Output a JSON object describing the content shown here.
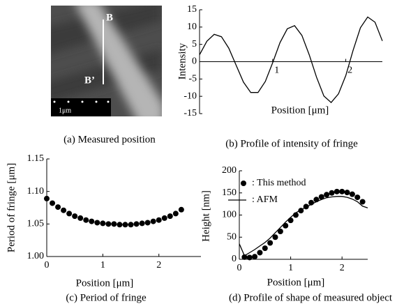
{
  "chart_data": [
    {
      "type": "image",
      "caption": "(a) Measured position",
      "point_labels": [
        "B",
        "B’"
      ],
      "scale_label": "1μm"
    },
    {
      "type": "line",
      "caption": "(b) Profile of intensity of fringe",
      "xlabel": "Position [μm]",
      "ylabel": "Intensity",
      "color": "#000000",
      "x": [
        0,
        0.1,
        0.2,
        0.3,
        0.4,
        0.5,
        0.6,
        0.7,
        0.8,
        0.9,
        1.0,
        1.1,
        1.2,
        1.3,
        1.4,
        1.5,
        1.6,
        1.7,
        1.8,
        1.9,
        2.0,
        2.1,
        2.2,
        2.3,
        2.4,
        2.5
      ],
      "values": [
        2.0,
        5.9,
        7.9,
        7.2,
        3.9,
        -1.0,
        -5.9,
        -8.9,
        -8.9,
        -5.7,
        -0.3,
        5.5,
        9.5,
        10.4,
        7.6,
        2.0,
        -4.5,
        -9.9,
        -11.8,
        -9.3,
        -4.0,
        3.3,
        9.8,
        12.9,
        11.4,
        6.0
      ],
      "xlim": [
        0,
        2.5
      ],
      "ylim": [
        -15,
        15
      ],
      "xticks": [
        1,
        2
      ],
      "yticks": [
        -15,
        -10,
        -5,
        0,
        5,
        10,
        15
      ]
    },
    {
      "type": "scatter",
      "caption": "(c) Period of fringe",
      "xlabel": "Position [μm]",
      "ylabel": "Period of fringe [μm]",
      "color": "#000000",
      "x": [
        0,
        0.1,
        0.2,
        0.3,
        0.4,
        0.5,
        0.6,
        0.7,
        0.8,
        0.9,
        1.0,
        1.1,
        1.2,
        1.3,
        1.4,
        1.5,
        1.6,
        1.7,
        1.8,
        1.9,
        2.0,
        2.1,
        2.2,
        2.3,
        2.4
      ],
      "values": [
        1.089,
        1.082,
        1.076,
        1.071,
        1.066,
        1.062,
        1.059,
        1.056,
        1.054,
        1.052,
        1.051,
        1.05,
        1.05,
        1.049,
        1.049,
        1.049,
        1.05,
        1.051,
        1.052,
        1.054,
        1.056,
        1.059,
        1.062,
        1.066,
        1.072
      ],
      "xlim": [
        0,
        2.75
      ],
      "ylim": [
        1,
        1.15
      ],
      "xticks": [
        0,
        1,
        2
      ],
      "yticks": [
        {
          "value": 1,
          "label": "1.00"
        },
        1.05,
        {
          "value": 1.1,
          "label": "1.10"
        },
        1.15
      ]
    },
    {
      "type": "mixed",
      "caption": "(d) Profile of shape of measured object",
      "xlabel": "Position [μm]",
      "ylabel": "Height [nm]",
      "xlim": [
        0,
        2.5
      ],
      "ylim": [
        0,
        200
      ],
      "xticks": [
        0,
        1,
        2
      ],
      "yticks": [
        0,
        50,
        100,
        150,
        200
      ],
      "series": [
        {
          "name": ": This method",
          "type": "scatter",
          "color": "#000000",
          "x": [
            0.1,
            0.2,
            0.3,
            0.4,
            0.5,
            0.6,
            0.7,
            0.8,
            0.9,
            1.0,
            1.1,
            1.2,
            1.3,
            1.4,
            1.5,
            1.6,
            1.7,
            1.8,
            1.9,
            2.0,
            2.1,
            2.2,
            2.3,
            2.4
          ],
          "values": [
            5,
            4,
            6,
            15,
            25,
            37,
            50,
            63,
            76,
            88,
            100,
            110,
            119,
            128,
            135,
            141,
            146,
            150,
            153,
            153,
            151,
            147,
            140,
            130
          ]
        },
        {
          "name": ": AFM",
          "type": "line",
          "color": "#000000",
          "x": [
            0,
            0.1,
            0.2,
            0.3,
            0.4,
            0.5,
            0.6,
            0.7,
            0.8,
            0.9,
            1.0,
            1.1,
            1.2,
            1.3,
            1.4,
            1.5,
            1.6,
            1.7,
            1.8,
            1.9,
            2.0,
            2.1,
            2.2,
            2.3,
            2.4,
            2.5
          ],
          "values": [
            35,
            8,
            15,
            22,
            30,
            38,
            48,
            60,
            72,
            84,
            95,
            105,
            112,
            118,
            124,
            130,
            135,
            139,
            141,
            142,
            142,
            140,
            136,
            130,
            120,
            116
          ]
        }
      ]
    }
  ]
}
